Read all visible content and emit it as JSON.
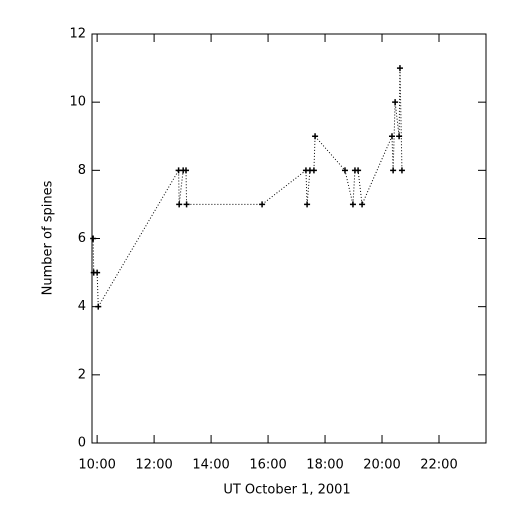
{
  "chart_data": {
    "type": "line",
    "xlabel": "UT October 1, 2001",
    "ylabel": "Number of spines",
    "x": [
      9.86,
      9.88,
      10.0,
      10.04,
      12.86,
      12.88,
      13.02,
      13.12,
      13.14,
      15.79,
      17.33,
      17.37,
      17.47,
      17.61,
      17.65,
      18.7,
      18.98,
      19.05,
      19.16,
      19.3,
      20.35,
      20.39,
      20.46,
      20.6,
      20.63,
      20.7
    ],
    "values": [
      6,
      5,
      5,
      4,
      8,
      7,
      8,
      8,
      7,
      7,
      8,
      7,
      8,
      8,
      9,
      8,
      7,
      8,
      8,
      7,
      9,
      8,
      10,
      9,
      11,
      8
    ],
    "color": "#000000",
    "marker": "+",
    "xlim": [
      9.82,
      23.65
    ],
    "ylim": [
      0,
      12
    ],
    "xticks": [
      {
        "value": 10,
        "label": "10:00"
      },
      {
        "value": 12,
        "label": "12:00"
      },
      {
        "value": 14,
        "label": "14:00"
      },
      {
        "value": 16,
        "label": "16:00"
      },
      {
        "value": 18,
        "label": "18:00"
      },
      {
        "value": 20,
        "label": "20:00"
      },
      {
        "value": 22,
        "label": "22:00"
      }
    ],
    "yticks": [
      0,
      2,
      4,
      6,
      8,
      10,
      12
    ]
  }
}
